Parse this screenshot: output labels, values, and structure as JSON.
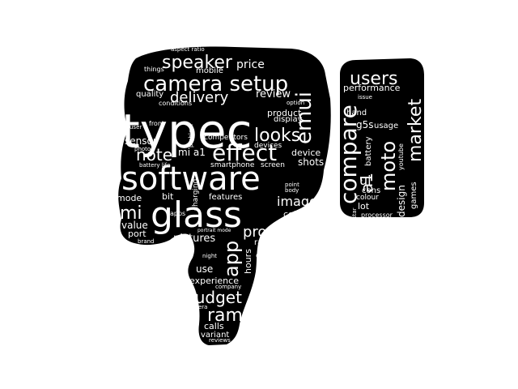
{
  "colors": {
    "background": "#ffffff",
    "shape": "#000000",
    "text": "#ffffff"
  },
  "words": [
    "aspect ratio",
    "things",
    "speaker",
    "price",
    "mobile",
    "users",
    "camera setup",
    "performance",
    "quality",
    "delivery",
    "review",
    "issue",
    "conditions",
    "emui",
    "option",
    "hand",
    "typec",
    "compare",
    "market",
    "front",
    "problem",
    "moto",
    "usage",
    "g5s",
    "looks",
    "user",
    "display",
    "competitors",
    "sensor",
    "note",
    "effect",
    "photos",
    "youtube",
    "battery",
    "device",
    "mi a1",
    "shots",
    "software",
    "battery life",
    "smartphone",
    "screen",
    "ui",
    "a1",
    "cons",
    "point",
    "design",
    "body",
    "colour",
    "charging",
    "games",
    "mode",
    "bit",
    "features",
    "images",
    "lot",
    "star",
    "mi",
    "glass",
    "processor",
    "apps",
    "color",
    "value",
    "stars",
    "pros",
    "port",
    "pictures",
    "range",
    "brand",
    "portrait mode",
    "app",
    "gb",
    "night",
    "hours",
    "use",
    "experience",
    "company",
    "budget",
    "camera",
    "ram",
    "calls",
    "variant",
    "reviews",
    "product",
    "devices"
  ]
}
